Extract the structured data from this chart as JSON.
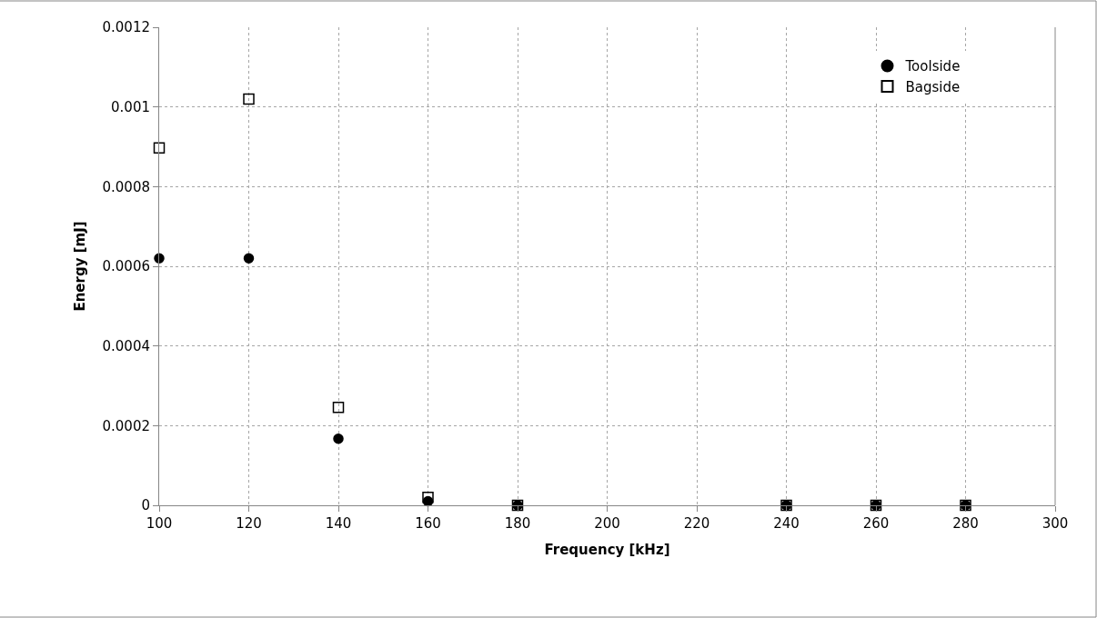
{
  "chart_data": {
    "type": "scatter",
    "xlabel": "Frequency [kHz]",
    "ylabel": "Energy [mJ]",
    "x": [
      100,
      120,
      140,
      160,
      180,
      240,
      260,
      280
    ],
    "series": [
      {
        "name": "Toolside",
        "color": "#000000",
        "marker": "circle",
        "values": [
          0.00062,
          0.00062,
          0.000167,
          1e-05,
          0,
          0,
          0,
          0
        ]
      },
      {
        "name": "Bagside",
        "color": "#000000",
        "marker": "square",
        "values": [
          0.000897,
          0.00102,
          0.000246,
          2e-05,
          0,
          0,
          0,
          0
        ]
      }
    ],
    "xlim": [
      100,
      300
    ],
    "xticks": [
      100,
      120,
      140,
      160,
      180,
      200,
      220,
      240,
      260,
      280,
      300
    ],
    "ylim": [
      0,
      0.0012
    ],
    "yticks": [
      0,
      0.0002,
      0.0004,
      0.0006,
      0.0008,
      0.001,
      0.0012
    ],
    "grid": true,
    "legend": "top right"
  }
}
